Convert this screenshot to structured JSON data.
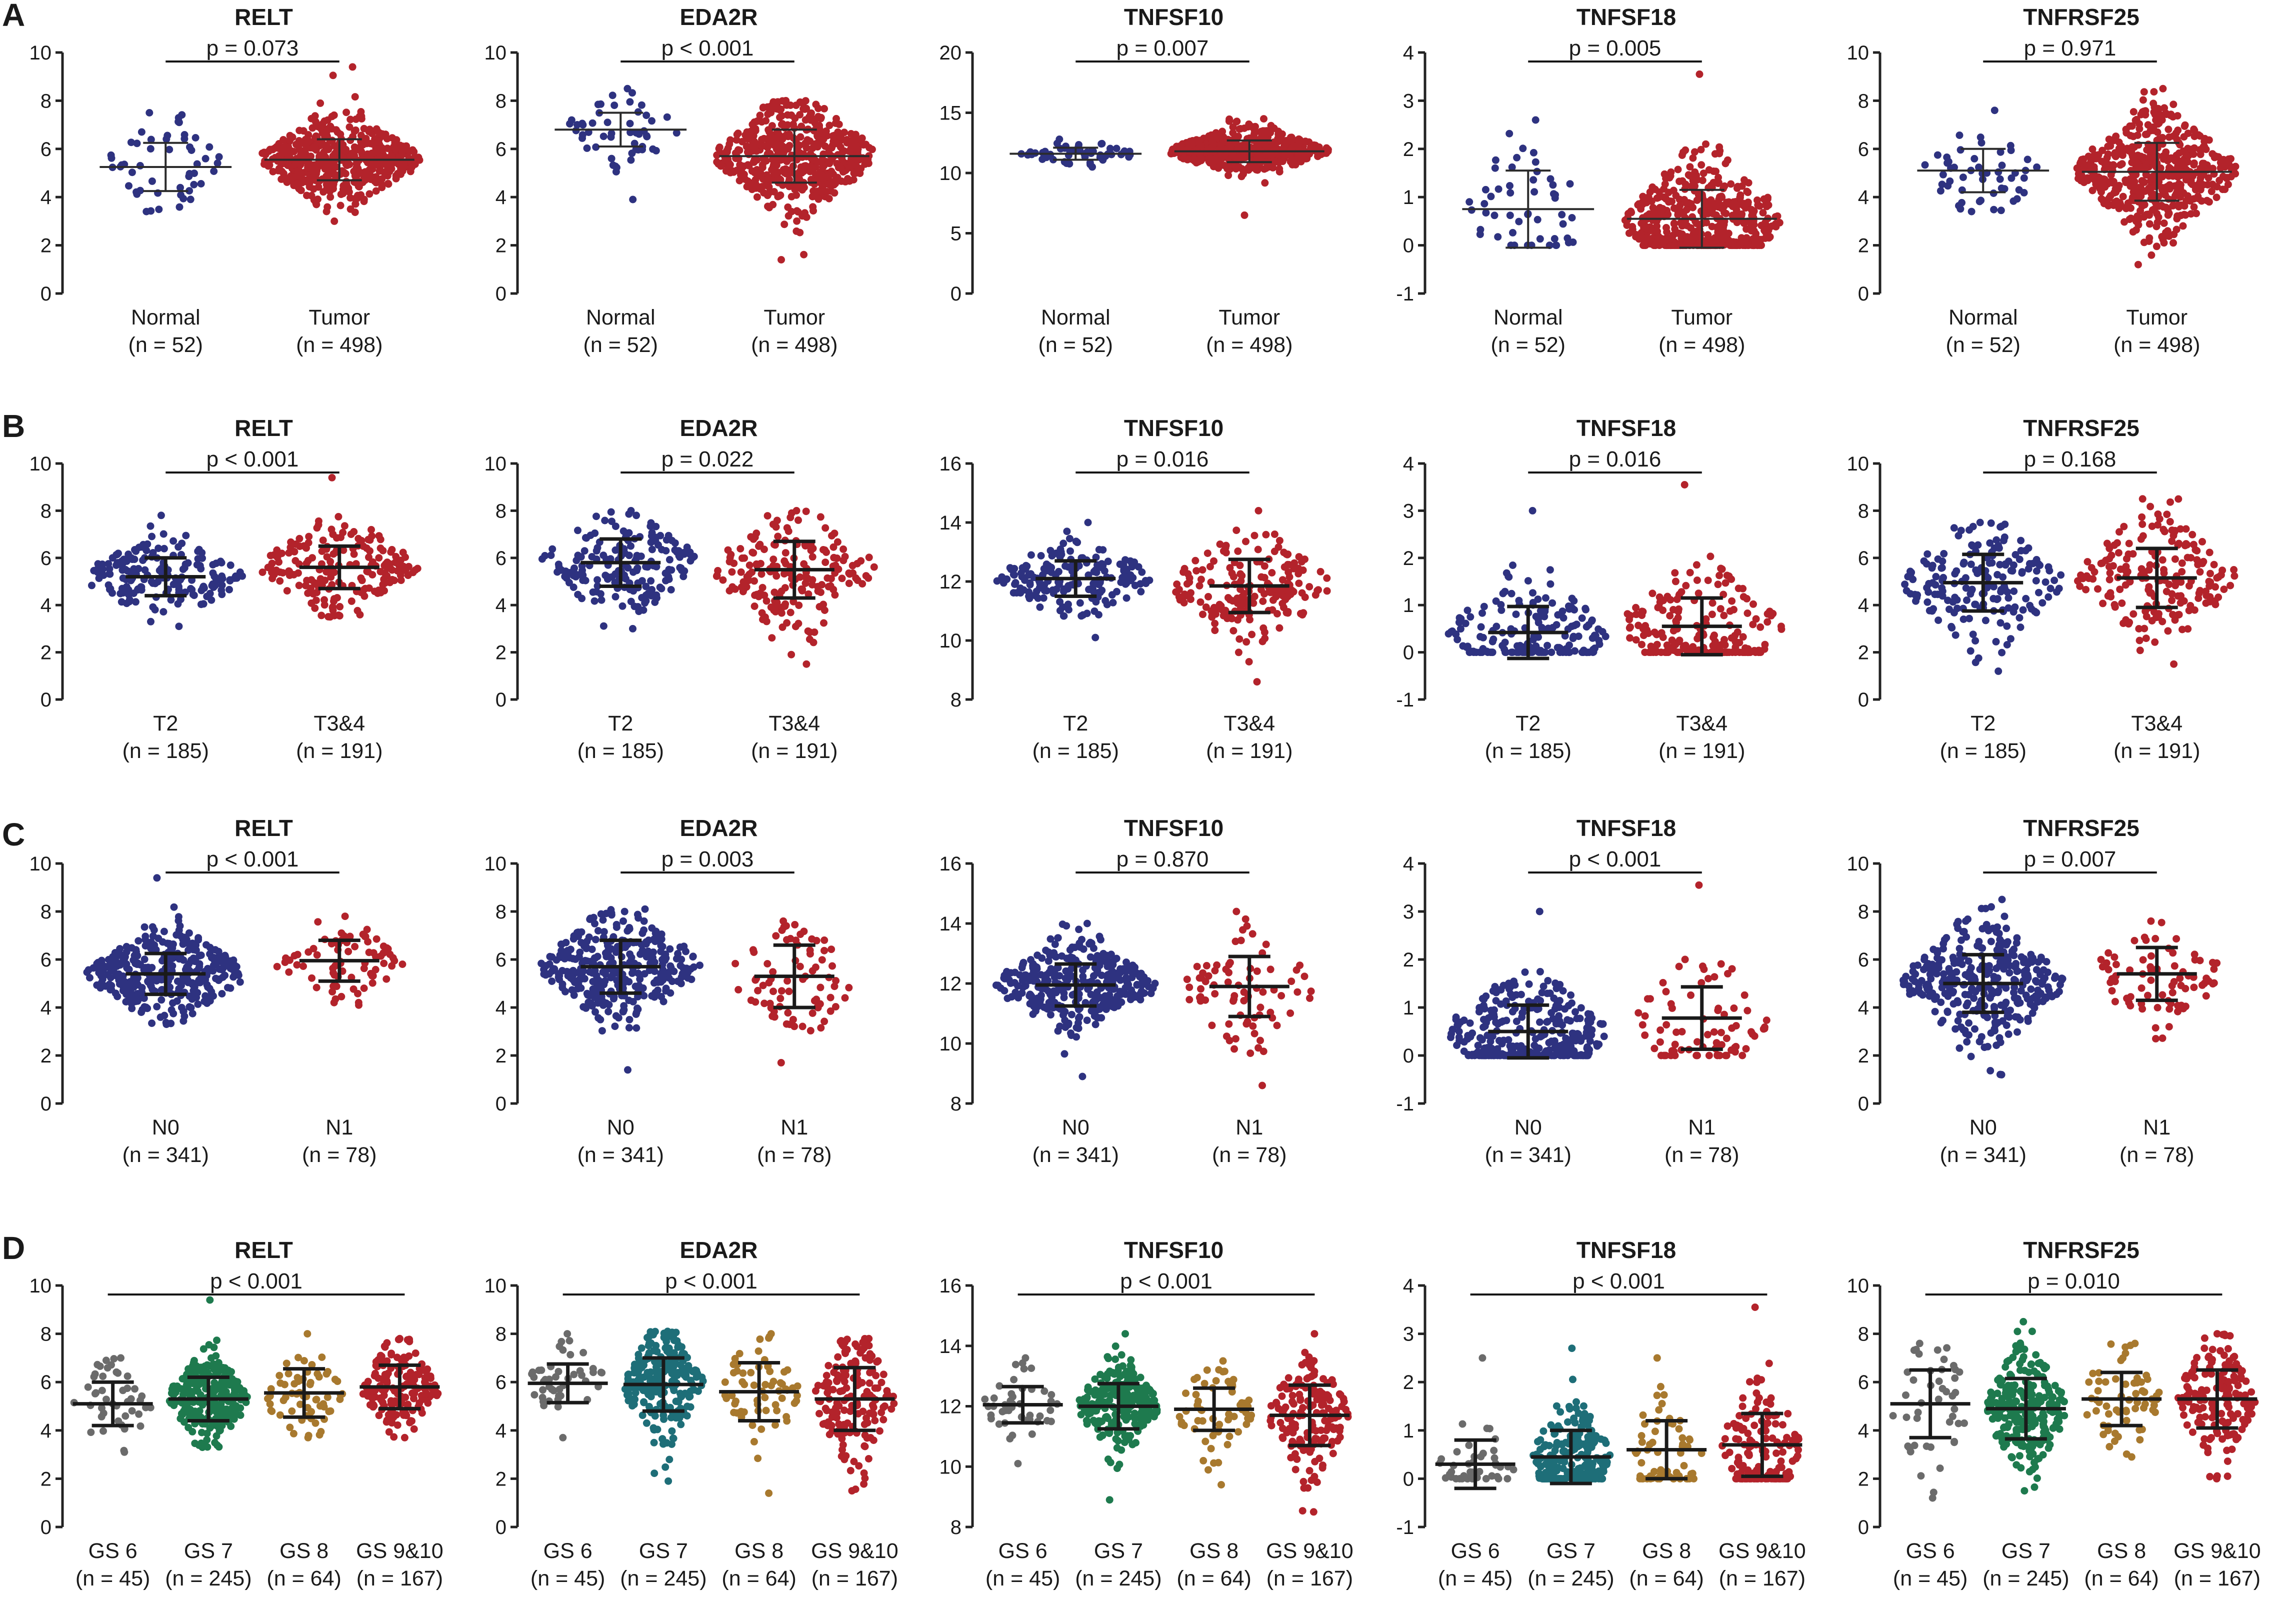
{
  "figure": {
    "panel_labels": [
      "A",
      "B",
      "C",
      "D"
    ],
    "colors": {
      "navy": "#2e3280",
      "red": "#b3232b",
      "gray": "#6b6b6b",
      "green": "#1e7a4e",
      "gold": "#a8792e",
      "teal": "#1e6e78",
      "errorbar_thin": "#2b2b2b",
      "errorbar_thick": "#1a1a1a"
    }
  },
  "chart_data": [
    {
      "panel": "A",
      "type": "scatter",
      "title": "RELT",
      "ylim": [
        0,
        10
      ],
      "ticks": [
        0,
        2,
        4,
        6,
        8,
        10
      ],
      "p": "p = 0.073",
      "bracket": [
        0,
        1
      ],
      "groups": [
        {
          "label": "Normal",
          "n": "(n = 52)",
          "mean": 5.25,
          "sd": 1.0,
          "min": 3.4,
          "max": 7.5,
          "count": 52,
          "color": "navy"
        },
        {
          "label": "Tumor",
          "n": "(n = 498)",
          "mean": 5.55,
          "sd": 0.85,
          "min": 3.0,
          "max": 9.4,
          "count": 498,
          "color": "red"
        }
      ]
    },
    {
      "panel": "A",
      "type": "scatter",
      "title": "EDA2R",
      "ylim": [
        0,
        10
      ],
      "ticks": [
        0,
        2,
        4,
        6,
        8,
        10
      ],
      "p": "p < 0.001",
      "bracket": [
        0,
        1
      ],
      "groups": [
        {
          "label": "Normal",
          "n": "(n = 52)",
          "mean": 6.8,
          "sd": 0.7,
          "min": 3.9,
          "max": 8.5,
          "count": 52,
          "color": "navy"
        },
        {
          "label": "Tumor",
          "n": "(n = 498)",
          "mean": 5.7,
          "sd": 1.1,
          "min": 1.4,
          "max": 8.0,
          "count": 498,
          "color": "red"
        }
      ]
    },
    {
      "panel": "A",
      "type": "scatter",
      "title": "TNFSF10",
      "ylim": [
        0,
        20
      ],
      "ticks": [
        0,
        5,
        10,
        15,
        20
      ],
      "p": "p = 0.007",
      "bracket": [
        0,
        1
      ],
      "groups": [
        {
          "label": "Normal",
          "n": "(n = 52)",
          "mean": 11.6,
          "sd": 0.5,
          "min": 10.5,
          "max": 12.8,
          "count": 52,
          "color": "navy"
        },
        {
          "label": "Tumor",
          "n": "(n = 498)",
          "mean": 11.8,
          "sd": 0.9,
          "min": 6.5,
          "max": 14.5,
          "count": 498,
          "color": "red"
        }
      ]
    },
    {
      "panel": "A",
      "type": "scatter",
      "title": "TNFSF18",
      "ylim": [
        -1,
        4
      ],
      "ticks": [
        -1,
        0,
        1,
        2,
        3,
        4
      ],
      "p": "p = 0.005",
      "bracket": [
        0,
        1
      ],
      "groups": [
        {
          "label": "Normal",
          "n": "(n = 52)",
          "mean": 0.75,
          "sd": 0.8,
          "min": 0.0,
          "max": 2.6,
          "count": 52,
          "color": "navy"
        },
        {
          "label": "Tumor",
          "n": "(n = 498)",
          "mean": 0.55,
          "sd": 0.6,
          "min": 0.0,
          "max": 3.55,
          "count": 498,
          "color": "red"
        }
      ]
    },
    {
      "panel": "A",
      "type": "scatter",
      "title": "TNFRSF25",
      "ylim": [
        0,
        10
      ],
      "ticks": [
        0,
        2,
        4,
        6,
        8,
        10
      ],
      "p": "p = 0.971",
      "bracket": [
        0,
        1
      ],
      "groups": [
        {
          "label": "Normal",
          "n": "(n = 52)",
          "mean": 5.1,
          "sd": 0.9,
          "min": 3.4,
          "max": 7.6,
          "count": 52,
          "color": "navy"
        },
        {
          "label": "Tumor",
          "n": "(n = 498)",
          "mean": 5.05,
          "sd": 1.2,
          "min": 1.2,
          "max": 8.5,
          "count": 498,
          "color": "red"
        }
      ]
    },
    {
      "panel": "B",
      "type": "scatter",
      "title": "RELT",
      "ylim": [
        0,
        10
      ],
      "ticks": [
        0,
        2,
        4,
        6,
        8,
        10
      ],
      "p": "p < 0.001",
      "bracket": [
        0,
        1
      ],
      "groups": [
        {
          "label": "T2",
          "n": "(n = 185)",
          "mean": 5.2,
          "sd": 0.8,
          "min": 3.1,
          "max": 7.8,
          "count": 185,
          "color": "navy"
        },
        {
          "label": "T3&4",
          "n": "(n = 191)",
          "mean": 5.6,
          "sd": 0.9,
          "min": 3.5,
          "max": 9.4,
          "count": 191,
          "color": "red"
        }
      ]
    },
    {
      "panel": "B",
      "type": "scatter",
      "title": "EDA2R",
      "ylim": [
        0,
        10
      ],
      "ticks": [
        0,
        2,
        4,
        6,
        8,
        10
      ],
      "p": "p = 0.022",
      "bracket": [
        0,
        1
      ],
      "groups": [
        {
          "label": "T2",
          "n": "(n = 185)",
          "mean": 5.8,
          "sd": 1.0,
          "min": 3.0,
          "max": 8.0,
          "count": 185,
          "color": "navy"
        },
        {
          "label": "T3&4",
          "n": "(n = 191)",
          "mean": 5.5,
          "sd": 1.2,
          "min": 1.5,
          "max": 8.0,
          "count": 191,
          "color": "red"
        }
      ]
    },
    {
      "panel": "B",
      "type": "scatter",
      "title": "TNFSF10",
      "ylim": [
        8,
        16
      ],
      "ticks": [
        8,
        10,
        12,
        14,
        16
      ],
      "p": "p = 0.016",
      "bracket": [
        0,
        1
      ],
      "groups": [
        {
          "label": "T2",
          "n": "(n = 185)",
          "mean": 12.1,
          "sd": 0.6,
          "min": 10.1,
          "max": 14.0,
          "count": 185,
          "color": "navy"
        },
        {
          "label": "T3&4",
          "n": "(n = 191)",
          "mean": 11.85,
          "sd": 0.9,
          "min": 8.6,
          "max": 14.4,
          "count": 191,
          "color": "red"
        }
      ]
    },
    {
      "panel": "B",
      "type": "scatter",
      "title": "TNFSF18",
      "ylim": [
        -1,
        4
      ],
      "ticks": [
        -1,
        0,
        1,
        2,
        3,
        4
      ],
      "p": "p = 0.016",
      "bracket": [
        0,
        1
      ],
      "groups": [
        {
          "label": "T2",
          "n": "(n = 185)",
          "mean": 0.42,
          "sd": 0.55,
          "min": 0.0,
          "max": 3.0,
          "count": 185,
          "color": "navy"
        },
        {
          "label": "T3&4",
          "n": "(n = 191)",
          "mean": 0.55,
          "sd": 0.6,
          "min": 0.0,
          "max": 3.55,
          "count": 191,
          "color": "red"
        }
      ]
    },
    {
      "panel": "B",
      "type": "scatter",
      "title": "TNFRSF25",
      "ylim": [
        0,
        10
      ],
      "ticks": [
        0,
        2,
        4,
        6,
        8,
        10
      ],
      "p": "p = 0.168",
      "bracket": [
        0,
        1
      ],
      "groups": [
        {
          "label": "T2",
          "n": "(n = 185)",
          "mean": 4.95,
          "sd": 1.2,
          "min": 1.2,
          "max": 7.5,
          "count": 185,
          "color": "navy"
        },
        {
          "label": "T3&4",
          "n": "(n = 191)",
          "mean": 5.15,
          "sd": 1.25,
          "min": 1.5,
          "max": 8.5,
          "count": 191,
          "color": "red"
        }
      ]
    },
    {
      "panel": "C",
      "type": "scatter",
      "title": "RELT",
      "ylim": [
        0,
        10
      ],
      "ticks": [
        0,
        2,
        4,
        6,
        8,
        10
      ],
      "p": "p < 0.001",
      "bracket": [
        0,
        1
      ],
      "groups": [
        {
          "label": "N0",
          "n": "(n = 341)",
          "mean": 5.4,
          "sd": 0.85,
          "min": 3.3,
          "max": 9.4,
          "count": 341,
          "color": "navy"
        },
        {
          "label": "N1",
          "n": "(n = 78)",
          "mean": 5.95,
          "sd": 0.85,
          "min": 4.1,
          "max": 7.8,
          "count": 78,
          "color": "red"
        }
      ]
    },
    {
      "panel": "C",
      "type": "scatter",
      "title": "EDA2R",
      "ylim": [
        0,
        10
      ],
      "ticks": [
        0,
        2,
        4,
        6,
        8,
        10
      ],
      "p": "p = 0.003",
      "bracket": [
        0,
        1
      ],
      "groups": [
        {
          "label": "N0",
          "n": "(n = 341)",
          "mean": 5.7,
          "sd": 1.1,
          "min": 1.4,
          "max": 8.1,
          "count": 341,
          "color": "navy"
        },
        {
          "label": "N1",
          "n": "(n = 78)",
          "mean": 5.3,
          "sd": 1.3,
          "min": 1.7,
          "max": 7.6,
          "count": 78,
          "color": "red"
        }
      ]
    },
    {
      "panel": "C",
      "type": "scatter",
      "title": "TNFSF10",
      "ylim": [
        8,
        16
      ],
      "ticks": [
        8,
        10,
        12,
        14,
        16
      ],
      "p": "p = 0.870",
      "bracket": [
        0,
        1
      ],
      "groups": [
        {
          "label": "N0",
          "n": "(n = 341)",
          "mean": 11.95,
          "sd": 0.7,
          "min": 8.9,
          "max": 14.0,
          "count": 341,
          "color": "navy"
        },
        {
          "label": "N1",
          "n": "(n = 78)",
          "mean": 11.9,
          "sd": 1.0,
          "min": 8.6,
          "max": 14.4,
          "count": 78,
          "color": "red"
        }
      ]
    },
    {
      "panel": "C",
      "type": "scatter",
      "title": "TNFSF18",
      "ylim": [
        -1,
        4
      ],
      "ticks": [
        -1,
        0,
        1,
        2,
        3,
        4
      ],
      "p": "p < 0.001",
      "bracket": [
        0,
        1
      ],
      "groups": [
        {
          "label": "N0",
          "n": "(n = 341)",
          "mean": 0.5,
          "sd": 0.55,
          "min": 0.0,
          "max": 3.0,
          "count": 341,
          "color": "navy"
        },
        {
          "label": "N1",
          "n": "(n = 78)",
          "mean": 0.78,
          "sd": 0.65,
          "min": 0.0,
          "max": 3.55,
          "count": 78,
          "color": "red"
        }
      ]
    },
    {
      "panel": "C",
      "type": "scatter",
      "title": "TNFRSF25",
      "ylim": [
        0,
        10
      ],
      "ticks": [
        0,
        2,
        4,
        6,
        8,
        10
      ],
      "p": "p = 0.007",
      "bracket": [
        0,
        1
      ],
      "groups": [
        {
          "label": "N0",
          "n": "(n = 341)",
          "mean": 5.0,
          "sd": 1.2,
          "min": 1.2,
          "max": 8.5,
          "count": 341,
          "color": "navy"
        },
        {
          "label": "N1",
          "n": "(n = 78)",
          "mean": 5.4,
          "sd": 1.1,
          "min": 2.7,
          "max": 7.6,
          "count": 78,
          "color": "red"
        }
      ]
    },
    {
      "panel": "D",
      "type": "scatter",
      "title": "RELT",
      "ylim": [
        0,
        10
      ],
      "ticks": [
        0,
        2,
        4,
        6,
        8,
        10
      ],
      "p": "p < 0.001",
      "bracket": [
        0,
        3
      ],
      "groups": [
        {
          "label": "GS 6",
          "n": "(n = 45)",
          "mean": 5.1,
          "sd": 0.9,
          "min": 3.1,
          "max": 7.0,
          "count": 45,
          "color": "gray"
        },
        {
          "label": "GS 7",
          "n": "(n = 245)",
          "mean": 5.3,
          "sd": 0.9,
          "min": 3.3,
          "max": 9.4,
          "count": 245,
          "color": "green"
        },
        {
          "label": "GS 8",
          "n": "(n = 64)",
          "mean": 5.55,
          "sd": 1.0,
          "min": 3.7,
          "max": 8.0,
          "count": 64,
          "color": "gold"
        },
        {
          "label": "GS 9&10",
          "n": "(n = 167)",
          "mean": 5.8,
          "sd": 0.9,
          "min": 3.7,
          "max": 7.8,
          "count": 167,
          "color": "red"
        }
      ]
    },
    {
      "panel": "D",
      "type": "scatter",
      "title": "EDA2R",
      "ylim": [
        0,
        10
      ],
      "ticks": [
        0,
        2,
        4,
        6,
        8,
        10
      ],
      "p": "p < 0.001",
      "bracket": [
        0,
        3
      ],
      "groups": [
        {
          "label": "GS 6",
          "n": "(n = 45)",
          "mean": 5.95,
          "sd": 0.8,
          "min": 3.7,
          "max": 8.0,
          "count": 45,
          "color": "gray"
        },
        {
          "label": "GS 7",
          "n": "(n = 245)",
          "mean": 5.9,
          "sd": 1.1,
          "min": 1.9,
          "max": 8.1,
          "count": 245,
          "color": "teal"
        },
        {
          "label": "GS 8",
          "n": "(n = 64)",
          "mean": 5.6,
          "sd": 1.2,
          "min": 1.4,
          "max": 8.0,
          "count": 64,
          "color": "gold"
        },
        {
          "label": "GS 9&10",
          "n": "(n = 167)",
          "mean": 5.3,
          "sd": 1.3,
          "min": 1.5,
          "max": 7.8,
          "count": 167,
          "color": "red"
        }
      ]
    },
    {
      "panel": "D",
      "type": "scatter",
      "title": "TNFSF10",
      "ylim": [
        8,
        16
      ],
      "ticks": [
        8,
        10,
        12,
        14,
        16
      ],
      "p": "p < 0.001",
      "bracket": [
        0,
        3
      ],
      "groups": [
        {
          "label": "GS 6",
          "n": "(n = 45)",
          "mean": 12.05,
          "sd": 0.6,
          "min": 10.1,
          "max": 13.6,
          "count": 45,
          "color": "gray"
        },
        {
          "label": "GS 7",
          "n": "(n = 245)",
          "mean": 12.0,
          "sd": 0.75,
          "min": 8.9,
          "max": 14.4,
          "count": 245,
          "color": "green"
        },
        {
          "label": "GS 8",
          "n": "(n = 64)",
          "mean": 11.9,
          "sd": 0.7,
          "min": 9.4,
          "max": 13.5,
          "count": 64,
          "color": "gold"
        },
        {
          "label": "GS 9&10",
          "n": "(n = 167)",
          "mean": 11.7,
          "sd": 1.0,
          "min": 8.5,
          "max": 14.4,
          "count": 167,
          "color": "red"
        }
      ]
    },
    {
      "panel": "D",
      "type": "scatter",
      "title": "TNFSF18",
      "ylim": [
        -1,
        4
      ],
      "ticks": [
        -1,
        0,
        1,
        2,
        3,
        4
      ],
      "p": "p < 0.001",
      "bracket": [
        0,
        3
      ],
      "groups": [
        {
          "label": "GS 6",
          "n": "(n = 45)",
          "mean": 0.3,
          "sd": 0.5,
          "min": 0.0,
          "max": 2.5,
          "count": 45,
          "color": "gray"
        },
        {
          "label": "GS 7",
          "n": "(n = 245)",
          "mean": 0.45,
          "sd": 0.55,
          "min": 0.0,
          "max": 2.7,
          "count": 245,
          "color": "teal"
        },
        {
          "label": "GS 8",
          "n": "(n = 64)",
          "mean": 0.6,
          "sd": 0.6,
          "min": 0.0,
          "max": 2.5,
          "count": 64,
          "color": "gold"
        },
        {
          "label": "GS 9&10",
          "n": "(n = 167)",
          "mean": 0.7,
          "sd": 0.65,
          "min": 0.0,
          "max": 3.55,
          "count": 167,
          "color": "red"
        }
      ]
    },
    {
      "panel": "D",
      "type": "scatter",
      "title": "TNFRSF25",
      "ylim": [
        0,
        10
      ],
      "ticks": [
        0,
        2,
        4,
        6,
        8,
        10
      ],
      "p": "p = 0.010",
      "bracket": [
        0,
        3
      ],
      "groups": [
        {
          "label": "GS 6",
          "n": "(n = 45)",
          "mean": 5.1,
          "sd": 1.4,
          "min": 1.2,
          "max": 7.6,
          "count": 45,
          "color": "gray"
        },
        {
          "label": "GS 7",
          "n": "(n = 245)",
          "mean": 4.9,
          "sd": 1.25,
          "min": 1.5,
          "max": 8.5,
          "count": 245,
          "color": "green"
        },
        {
          "label": "GS 8",
          "n": "(n = 64)",
          "mean": 5.3,
          "sd": 1.1,
          "min": 2.9,
          "max": 7.6,
          "count": 64,
          "color": "gold"
        },
        {
          "label": "GS 9&10",
          "n": "(n = 167)",
          "mean": 5.3,
          "sd": 1.2,
          "min": 2.0,
          "max": 8.0,
          "count": 167,
          "color": "red"
        }
      ]
    }
  ]
}
